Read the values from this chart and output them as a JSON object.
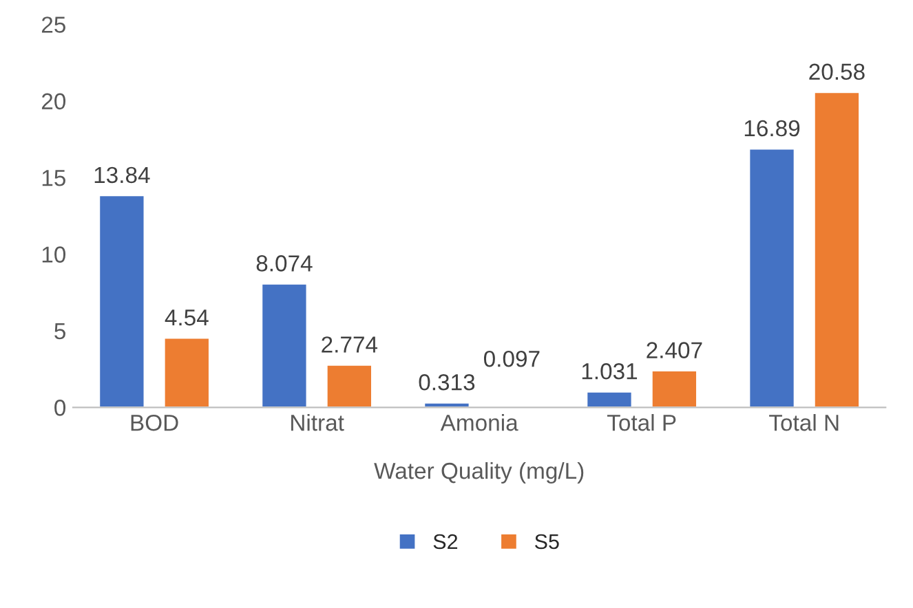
{
  "chart_data": {
    "type": "bar",
    "xlabel": "Water Quality (mg/L)",
    "categories": [
      "BOD",
      "Nitrat",
      "Amonia",
      "Total P",
      "Total N"
    ],
    "series": [
      {
        "name": "S2",
        "color": "#4472c4",
        "values": [
          13.84,
          8.074,
          0.313,
          1.031,
          16.89
        ]
      },
      {
        "name": "S5",
        "color": "#ed7d31",
        "values": [
          4.54,
          2.774,
          0.097,
          2.407,
          20.58
        ]
      }
    ],
    "ylim": [
      0,
      25
    ],
    "yticks": [
      0,
      5,
      10,
      15,
      20,
      25
    ],
    "data_labels": true,
    "grid": false,
    "legend": "bottom"
  }
}
